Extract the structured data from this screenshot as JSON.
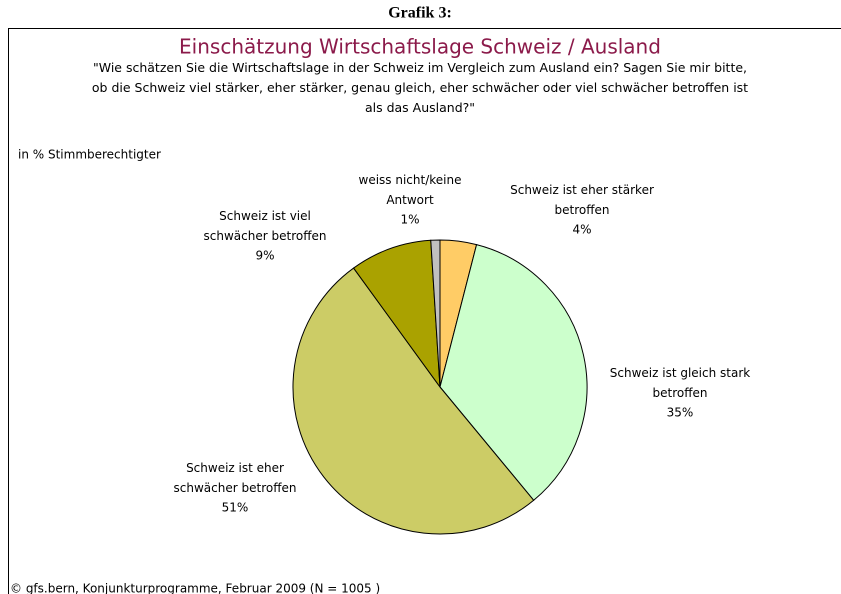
{
  "header": "Grafik 3:",
  "chart_data": {
    "type": "pie",
    "title": "Einschätzung Wirtschaftslage Schweiz / Ausland",
    "subtitle": "\"Wie schätzen Sie die Wirtschaftslage in der Schweiz im Vergleich zum Ausland ein? Sagen Sie mir bitte, ob die Schweiz viel stärker, eher stärker, genau gleich, eher schwächer oder viel schwächer betroffen ist als das Ausland?\"",
    "unit_label": "in % Stimmberechtigter",
    "categories": [
      "Schweiz ist eher stärker betroffen",
      "Schweiz ist gleich stark betroffen",
      "Schweiz ist eher schwächer betroffen",
      "Schweiz ist viel schwächer betroffen",
      "weiss nicht/keine Antwort"
    ],
    "values": [
      4,
      35,
      51,
      9,
      1
    ],
    "value_labels": [
      "4%",
      "35%",
      "51%",
      "9%",
      "1%"
    ],
    "colors": [
      "#ffcc66",
      "#ccffcc",
      "#cccc66",
      "#aaa200",
      "#c0c0c0"
    ],
    "source": "© gfs.bern, Konjunkturprogramme, Februar 2009 (N = 1005 )"
  }
}
